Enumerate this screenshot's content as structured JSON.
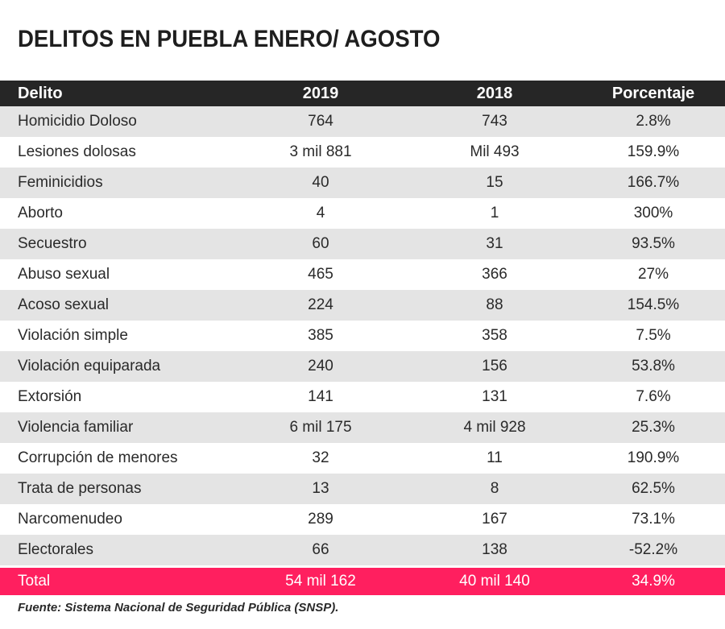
{
  "title": "DELITOS EN PUEBLA ENERO/ AGOSTO",
  "source": "Fuente: Sistema Nacional de Seguridad Pública (SNSP).",
  "chart_data": {
    "type": "table",
    "title": "DELITOS EN PUEBLA ENERO/ AGOSTO",
    "columns": [
      "Delito",
      "2019",
      "2018",
      "Porcentaje"
    ],
    "rows": [
      [
        "Homicidio Doloso",
        "764",
        "743",
        "2.8%"
      ],
      [
        "Lesiones dolosas",
        "3 mil 881",
        "Mil 493",
        "159.9%"
      ],
      [
        "Feminicidios",
        "40",
        "15",
        "166.7%"
      ],
      [
        "Aborto",
        "4",
        "1",
        "300%"
      ],
      [
        "Secuestro",
        "60",
        "31",
        "93.5%"
      ],
      [
        "Abuso sexual",
        "465",
        "366",
        "27%"
      ],
      [
        "Acoso sexual",
        "224",
        "88",
        "154.5%"
      ],
      [
        "Violación simple",
        "385",
        "358",
        "7.5%"
      ],
      [
        "Violación equiparada",
        "240",
        "156",
        "53.8%"
      ],
      [
        "Extorsión",
        "141",
        "131",
        "7.6%"
      ],
      [
        "Violencia familiar",
        "6 mil 175",
        "4 mil 928",
        "25.3%"
      ],
      [
        "Corrupción de menores",
        "32",
        "11",
        "190.9%"
      ],
      [
        "Trata de personas",
        "13",
        "8",
        "62.5%"
      ],
      [
        "Narcomenudeo",
        "289",
        "167",
        "73.1%"
      ],
      [
        "Electorales",
        "66",
        "138",
        "-52.2%"
      ]
    ],
    "total": [
      "Total",
      "54 mil 162",
      "40 mil 140",
      "34.9%"
    ],
    "colors": {
      "header_bg": "#262626",
      "stripe_bg": "#e4e4e4",
      "total_bg": "#ff1f5f"
    }
  }
}
